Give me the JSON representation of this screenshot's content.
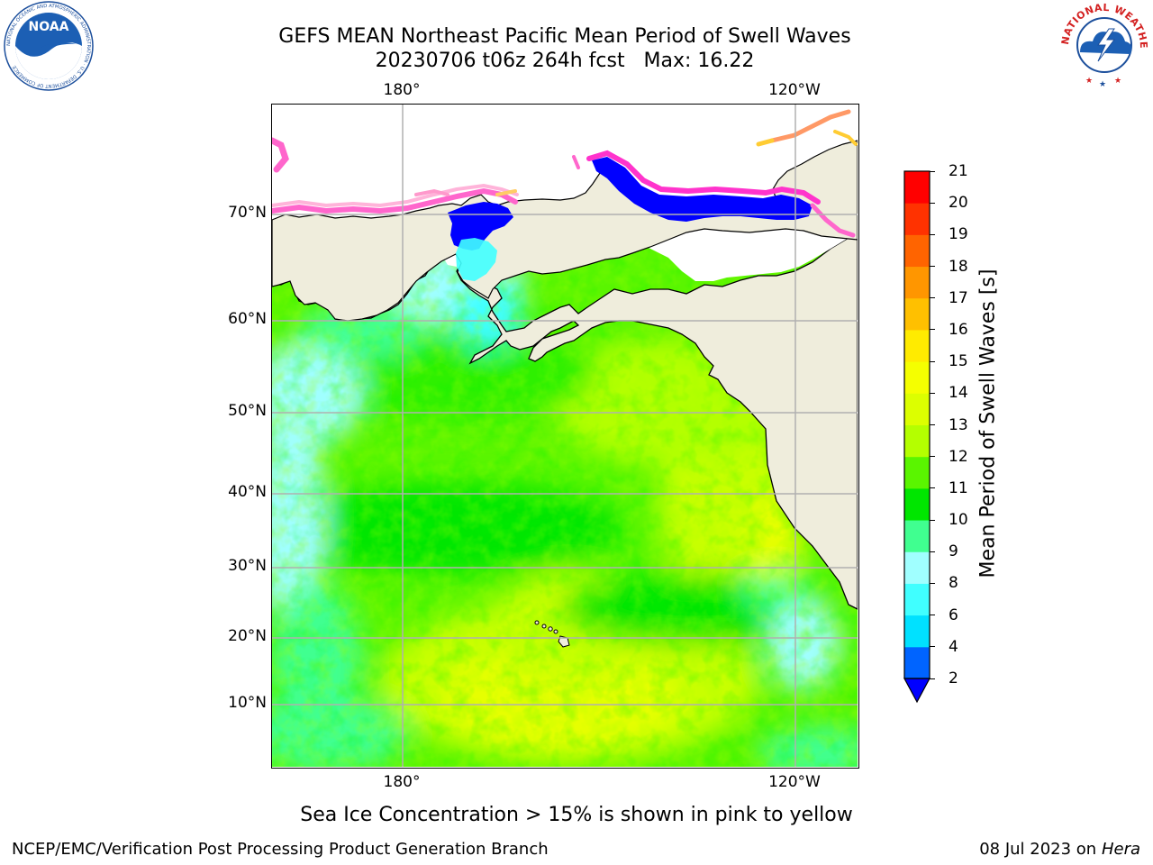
{
  "title": {
    "line1": "GEFS MEAN Northeast Pacific Mean Period of Swell Waves",
    "line2": "20230706 t06z 264h fcst   Max: 16.22"
  },
  "logos": {
    "noara_text": "NOAA",
    "noaa_ring": "NATIONAL OCEANIC AND ATMOSPHERIC ADMINISTRATION · U.S. DEPARTMENT OF COMMERCE",
    "nws_ring": "NATIONAL WEATHER SERVICE"
  },
  "map": {
    "lon_labels": [
      "180°",
      "120°W"
    ],
    "lat_labels": [
      "70°N",
      "60°N",
      "50°N",
      "40°N",
      "30°N",
      "20°N",
      "10°N"
    ],
    "land_color": "#efeddc",
    "grid_color": "#b0b0b0"
  },
  "colorbar": {
    "label": "Mean Period of Swell Waves [s]",
    "ticks": [
      "2",
      "4",
      "6",
      "8",
      "9",
      "10",
      "11",
      "12",
      "13",
      "14",
      "15",
      "16",
      "17",
      "18",
      "19",
      "20",
      "21"
    ],
    "colors": [
      "#0064ff",
      "#00e1ff",
      "#40ffff",
      "#a0ffff",
      "#40ff90",
      "#00e600",
      "#5af500",
      "#b4ff00",
      "#dcff00",
      "#f5ff00",
      "#ffeb00",
      "#ffc000",
      "#ff9600",
      "#ff6400",
      "#ff3200",
      "#ff0000"
    ],
    "extend_color": "#0000ff"
  },
  "caption": "Sea Ice Concentration > 15% is shown in pink to yellow",
  "footer": {
    "left": "NCEP/EMC/Verification Post Processing Product Generation Branch",
    "right_prefix": "08 Jul 2023 on ",
    "right_host": "Hera"
  }
}
